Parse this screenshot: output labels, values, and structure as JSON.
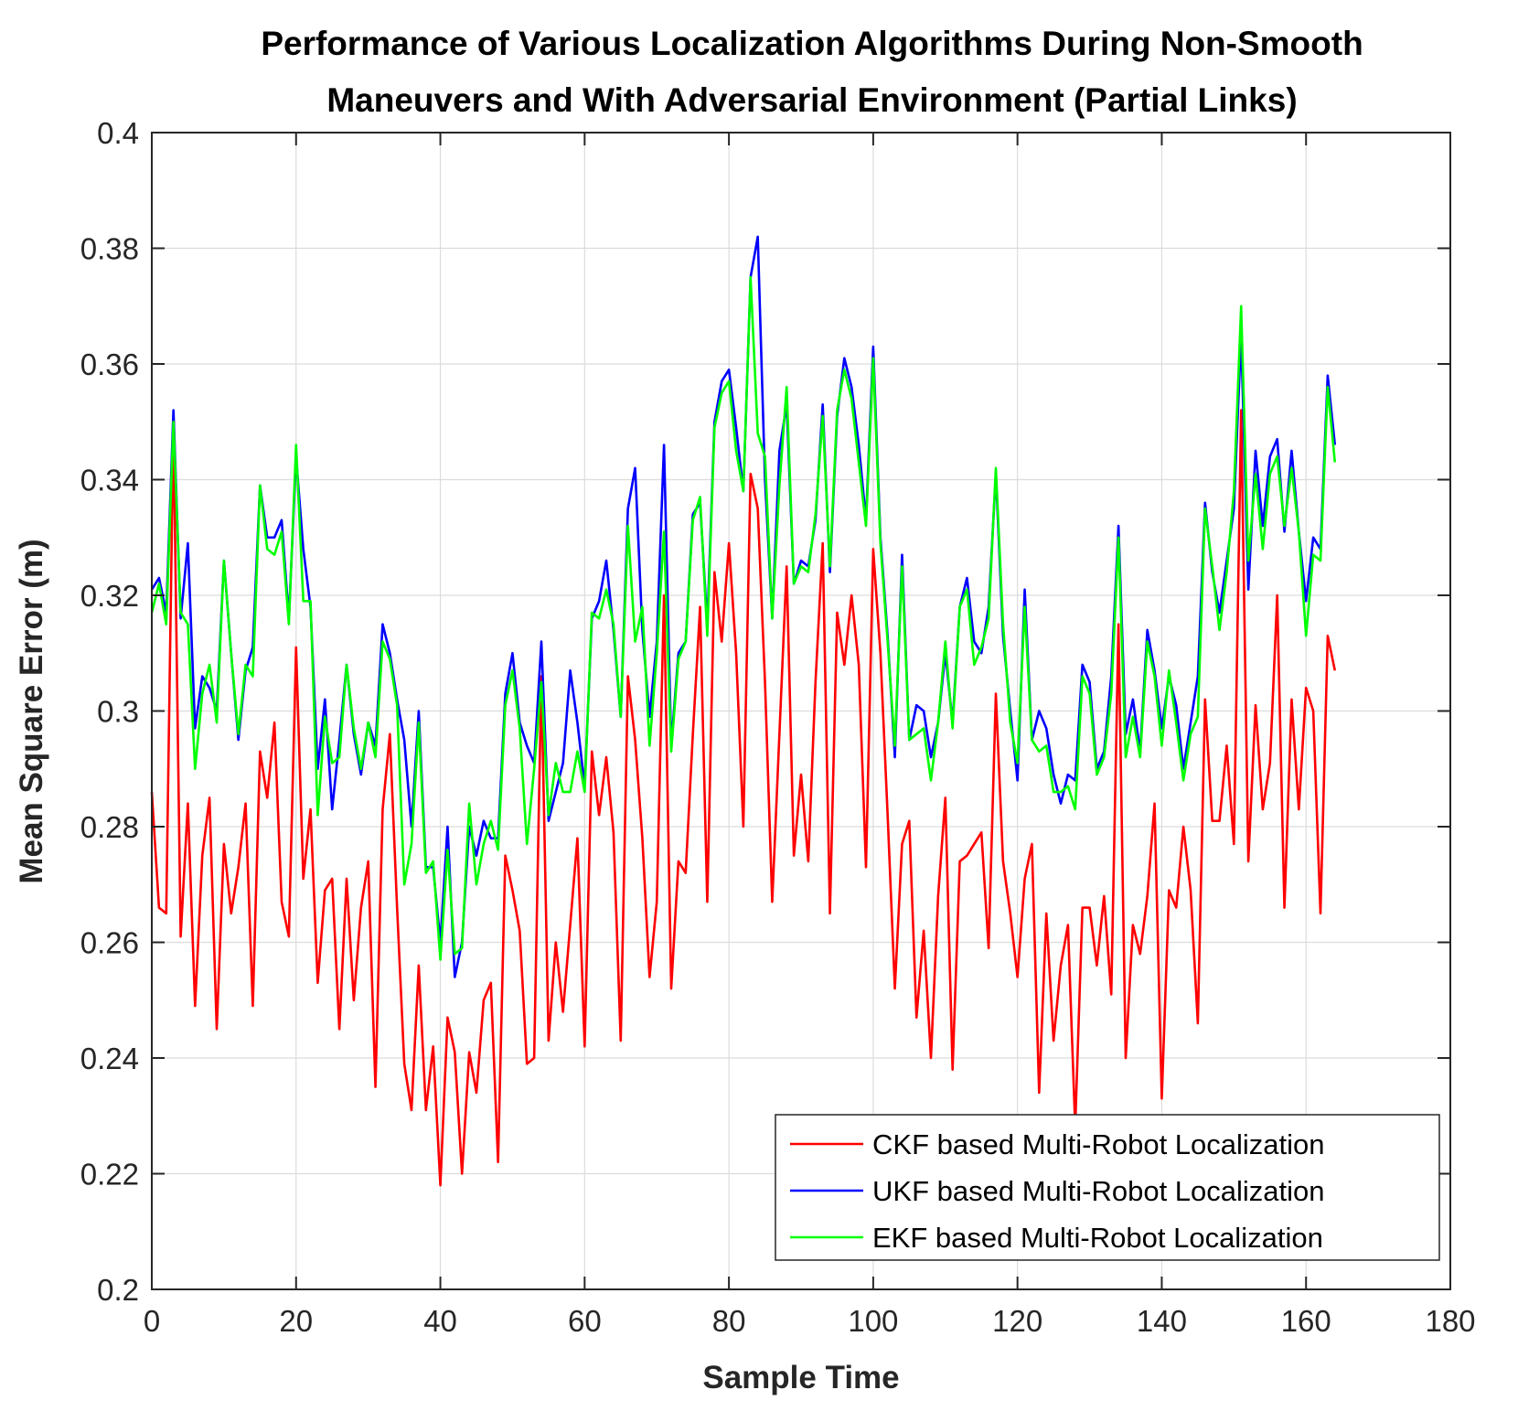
{
  "chart_data": {
    "type": "line",
    "title": [
      "Performance of Various Localization Algorithms During Non-Smooth",
      "Maneuvers and With Adversarial Environment (Partial Links)"
    ],
    "xlabel": "Sample Time",
    "ylabel": "Mean Square Error (m)",
    "xlim": [
      0,
      180
    ],
    "ylim": [
      0.2,
      0.4
    ],
    "xticks": [
      0,
      20,
      40,
      60,
      80,
      100,
      120,
      140,
      160,
      180
    ],
    "yticks": [
      0.2,
      0.22,
      0.24,
      0.26,
      0.28,
      0.3,
      0.32,
      0.34,
      0.36,
      0.38,
      0.4
    ],
    "xtick_labels": [
      "0",
      "20",
      "40",
      "60",
      "80",
      "100",
      "120",
      "140",
      "160",
      "180"
    ],
    "ytick_labels": [
      "0.2",
      "0.22",
      "0.24",
      "0.26",
      "0.28",
      "0.3",
      "0.32",
      "0.34",
      "0.36",
      "0.38",
      "0.4"
    ],
    "grid": true,
    "legend_position": "bottom-right",
    "x_start": 0,
    "x_step": 1,
    "series": [
      {
        "name": "CKF based Multi-Robot Localization",
        "color": "#ff0000",
        "values": [
          0.286,
          0.266,
          0.265,
          0.35,
          0.261,
          0.284,
          0.249,
          0.275,
          0.285,
          0.245,
          0.277,
          0.265,
          0.273,
          0.284,
          0.249,
          0.293,
          0.285,
          0.298,
          0.267,
          0.261,
          0.311,
          0.271,
          0.283,
          0.253,
          0.269,
          0.271,
          0.245,
          0.271,
          0.25,
          0.266,
          0.274,
          0.235,
          0.283,
          0.296,
          0.266,
          0.239,
          0.231,
          0.256,
          0.231,
          0.242,
          0.218,
          0.247,
          0.241,
          0.22,
          0.241,
          0.234,
          0.25,
          0.253,
          0.222,
          0.275,
          0.269,
          0.262,
          0.239,
          0.24,
          0.306,
          0.243,
          0.26,
          0.248,
          0.263,
          0.278,
          0.242,
          0.293,
          0.282,
          0.292,
          0.279,
          0.243,
          0.306,
          0.295,
          0.278,
          0.254,
          0.267,
          0.32,
          0.252,
          0.274,
          0.272,
          0.296,
          0.318,
          0.267,
          0.324,
          0.312,
          0.329,
          0.31,
          0.28,
          0.341,
          0.335,
          0.305,
          0.267,
          0.296,
          0.325,
          0.275,
          0.289,
          0.274,
          0.305,
          0.329,
          0.265,
          0.317,
          0.308,
          0.32,
          0.308,
          0.273,
          0.328,
          0.31,
          0.282,
          0.252,
          0.277,
          0.281,
          0.247,
          0.262,
          0.24,
          0.268,
          0.285,
          0.238,
          0.274,
          0.275,
          0.277,
          0.279,
          0.259,
          0.303,
          0.274,
          0.265,
          0.254,
          0.271,
          0.277,
          0.234,
          0.265,
          0.243,
          0.256,
          0.263,
          0.228,
          0.266,
          0.266,
          0.256,
          0.268,
          0.251,
          0.315,
          0.24,
          0.263,
          0.258,
          0.268,
          0.284,
          0.233,
          0.269,
          0.266,
          0.28,
          0.269,
          0.246,
          0.302,
          0.281,
          0.281,
          0.294,
          0.277,
          0.352,
          0.274,
          0.301,
          0.283,
          0.291,
          0.32,
          0.266,
          0.302,
          0.283,
          0.304,
          0.3,
          0.265,
          0.313,
          0.307
        ]
      },
      {
        "name": "UKF based Multi-Robot Localization",
        "color": "#0000ff",
        "values": [
          0.321,
          0.323,
          0.317,
          0.352,
          0.316,
          0.329,
          0.297,
          0.306,
          0.304,
          0.3,
          0.326,
          0.31,
          0.295,
          0.307,
          0.311,
          0.339,
          0.33,
          0.33,
          0.333,
          0.316,
          0.344,
          0.328,
          0.318,
          0.29,
          0.302,
          0.283,
          0.295,
          0.308,
          0.296,
          0.289,
          0.298,
          0.294,
          0.315,
          0.31,
          0.302,
          0.295,
          0.28,
          0.3,
          0.273,
          0.273,
          0.26,
          0.28,
          0.254,
          0.26,
          0.28,
          0.275,
          0.281,
          0.278,
          0.278,
          0.303,
          0.31,
          0.298,
          0.294,
          0.291,
          0.312,
          0.281,
          0.286,
          0.291,
          0.307,
          0.298,
          0.287,
          0.316,
          0.319,
          0.326,
          0.314,
          0.299,
          0.335,
          0.342,
          0.314,
          0.299,
          0.312,
          0.346,
          0.294,
          0.31,
          0.312,
          0.334,
          0.336,
          0.315,
          0.35,
          0.357,
          0.359,
          0.349,
          0.338,
          0.375,
          0.382,
          0.34,
          0.316,
          0.345,
          0.353,
          0.322,
          0.326,
          0.325,
          0.333,
          0.353,
          0.324,
          0.351,
          0.361,
          0.356,
          0.346,
          0.333,
          0.363,
          0.33,
          0.313,
          0.292,
          0.327,
          0.295,
          0.301,
          0.3,
          0.292,
          0.298,
          0.31,
          0.298,
          0.318,
          0.323,
          0.312,
          0.31,
          0.318,
          0.341,
          0.313,
          0.3,
          0.288,
          0.321,
          0.295,
          0.3,
          0.297,
          0.289,
          0.284,
          0.289,
          0.288,
          0.308,
          0.305,
          0.29,
          0.293,
          0.306,
          0.332,
          0.296,
          0.302,
          0.293,
          0.314,
          0.307,
          0.297,
          0.306,
          0.301,
          0.29,
          0.298,
          0.306,
          0.336,
          0.324,
          0.317,
          0.326,
          0.335,
          0.365,
          0.321,
          0.345,
          0.332,
          0.344,
          0.347,
          0.331,
          0.345,
          0.331,
          0.319,
          0.33,
          0.328,
          0.358,
          0.346
        ]
      },
      {
        "name": "EKF based Multi-Robot Localization",
        "color": "#00ff00",
        "values": [
          0.317,
          0.322,
          0.315,
          0.35,
          0.317,
          0.315,
          0.29,
          0.303,
          0.308,
          0.298,
          0.326,
          0.31,
          0.296,
          0.308,
          0.306,
          0.339,
          0.328,
          0.327,
          0.331,
          0.315,
          0.346,
          0.319,
          0.319,
          0.282,
          0.299,
          0.291,
          0.292,
          0.308,
          0.297,
          0.29,
          0.298,
          0.292,
          0.312,
          0.309,
          0.301,
          0.27,
          0.277,
          0.298,
          0.272,
          0.274,
          0.257,
          0.276,
          0.258,
          0.259,
          0.284,
          0.27,
          0.277,
          0.281,
          0.276,
          0.301,
          0.307,
          0.297,
          0.277,
          0.29,
          0.305,
          0.282,
          0.291,
          0.286,
          0.286,
          0.293,
          0.286,
          0.317,
          0.316,
          0.321,
          0.315,
          0.299,
          0.332,
          0.312,
          0.318,
          0.294,
          0.31,
          0.331,
          0.293,
          0.309,
          0.312,
          0.333,
          0.337,
          0.313,
          0.349,
          0.355,
          0.357,
          0.345,
          0.338,
          0.375,
          0.348,
          0.344,
          0.316,
          0.339,
          0.356,
          0.322,
          0.325,
          0.324,
          0.334,
          0.351,
          0.325,
          0.352,
          0.359,
          0.354,
          0.343,
          0.332,
          0.361,
          0.329,
          0.312,
          0.294,
          0.325,
          0.295,
          0.296,
          0.297,
          0.288,
          0.298,
          0.312,
          0.297,
          0.318,
          0.321,
          0.308,
          0.311,
          0.316,
          0.342,
          0.315,
          0.298,
          0.291,
          0.318,
          0.295,
          0.293,
          0.294,
          0.286,
          0.286,
          0.287,
          0.283,
          0.306,
          0.303,
          0.289,
          0.292,
          0.303,
          0.33,
          0.292,
          0.299,
          0.292,
          0.312,
          0.306,
          0.294,
          0.307,
          0.298,
          0.288,
          0.296,
          0.299,
          0.335,
          0.325,
          0.314,
          0.324,
          0.338,
          0.37,
          0.326,
          0.341,
          0.328,
          0.341,
          0.344,
          0.332,
          0.342,
          0.331,
          0.313,
          0.327,
          0.326,
          0.356,
          0.343
        ]
      }
    ]
  }
}
